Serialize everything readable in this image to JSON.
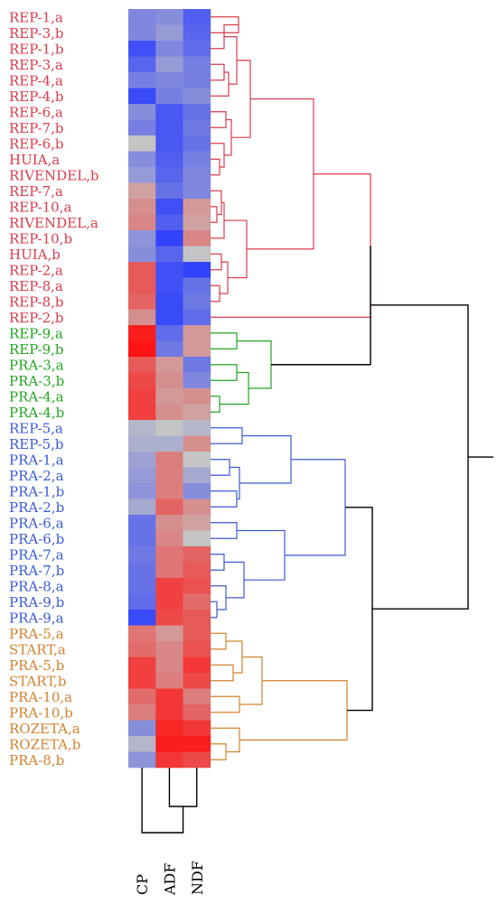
{
  "colors": {
    "red": "#d83c4c",
    "green": "#22a422",
    "blue": "#3a5ad6",
    "orange": "#d2822e",
    "root": "#000000",
    "heat_low": "#2a3cff",
    "heat_mid": "#c4c4c4",
    "heat_high": "#ff1414"
  },
  "columns": [
    "CP",
    "ADF",
    "NDF"
  ],
  "rows": [
    {
      "label": "REP-1,a",
      "group": "red",
      "heat": [
        -0.45,
        -0.4,
        -0.75
      ]
    },
    {
      "label": "REP-3,b",
      "group": "red",
      "heat": [
        -0.45,
        -0.3,
        -0.7
      ]
    },
    {
      "label": "REP-1,b",
      "group": "red",
      "heat": [
        -0.85,
        -0.45,
        -0.65
      ]
    },
    {
      "label": "REP-3,a",
      "group": "red",
      "heat": [
        -0.7,
        -0.3,
        -0.5
      ]
    },
    {
      "label": "REP-4,a",
      "group": "red",
      "heat": [
        -0.5,
        -0.45,
        -0.5
      ]
    },
    {
      "label": "REP-4,b",
      "group": "red",
      "heat": [
        -0.9,
        -0.5,
        -0.4
      ]
    },
    {
      "label": "REP-6,a",
      "group": "red",
      "heat": [
        -0.4,
        -0.8,
        -0.6
      ]
    },
    {
      "label": "REP-7,b",
      "group": "red",
      "heat": [
        -0.5,
        -0.8,
        -0.55
      ]
    },
    {
      "label": "REP-6,b",
      "group": "red",
      "heat": [
        0.0,
        -0.8,
        -0.6
      ]
    },
    {
      "label": "HUIA,a",
      "group": "red",
      "heat": [
        -0.4,
        -0.75,
        -0.5
      ]
    },
    {
      "label": "RIVENDEL,b",
      "group": "red",
      "heat": [
        -0.3,
        -0.7,
        -0.45
      ]
    },
    {
      "label": "REP-7,a",
      "group": "red",
      "heat": [
        0.2,
        -0.6,
        -0.45
      ]
    },
    {
      "label": "REP-10,a",
      "group": "red",
      "heat": [
        0.3,
        -0.85,
        0.25
      ]
    },
    {
      "label": "RIVENDEL,a",
      "group": "red",
      "heat": [
        0.35,
        -0.75,
        0.2
      ]
    },
    {
      "label": "REP-10,b",
      "group": "red",
      "heat": [
        -0.35,
        -0.95,
        0.35
      ]
    },
    {
      "label": "HUIA,b",
      "group": "red",
      "heat": [
        -0.4,
        -0.7,
        0.0
      ]
    },
    {
      "label": "REP-2,a",
      "group": "red",
      "heat": [
        0.6,
        -0.85,
        -0.95
      ]
    },
    {
      "label": "REP-8,a",
      "group": "red",
      "heat": [
        0.6,
        -0.85,
        -0.6
      ]
    },
    {
      "label": "REP-8,b",
      "group": "red",
      "heat": [
        0.55,
        -0.9,
        -0.55
      ]
    },
    {
      "label": "REP-2,b",
      "group": "red",
      "heat": [
        0.3,
        -0.9,
        -0.65
      ]
    },
    {
      "label": "REP-9,a",
      "group": "green",
      "heat": [
        0.95,
        -0.65,
        0.25
      ]
    },
    {
      "label": "REP-9,b",
      "group": "green",
      "heat": [
        1.0,
        -0.55,
        0.25
      ]
    },
    {
      "label": "PRA-3,a",
      "group": "green",
      "heat": [
        0.6,
        0.25,
        -0.55
      ]
    },
    {
      "label": "PRA-3,b",
      "group": "green",
      "heat": [
        0.7,
        0.3,
        -0.45
      ]
    },
    {
      "label": "PRA-4,a",
      "group": "green",
      "heat": [
        0.75,
        0.25,
        0.3
      ]
    },
    {
      "label": "PRA-4,b",
      "group": "green",
      "heat": [
        0.75,
        0.3,
        0.2
      ]
    },
    {
      "label": "REP-5,a",
      "group": "blue",
      "heat": [
        -0.1,
        0.0,
        -0.1
      ]
    },
    {
      "label": "REP-5,b",
      "group": "blue",
      "heat": [
        -0.15,
        -0.15,
        0.3
      ]
    },
    {
      "label": "PRA-1,a",
      "group": "blue",
      "heat": [
        -0.25,
        0.4,
        0.0
      ]
    },
    {
      "label": "PRA-2,a",
      "group": "blue",
      "heat": [
        -0.3,
        0.4,
        -0.2
      ]
    },
    {
      "label": "PRA-1,b",
      "group": "blue",
      "heat": [
        -0.35,
        0.4,
        -0.4
      ]
    },
    {
      "label": "PRA-2,b",
      "group": "blue",
      "heat": [
        -0.2,
        0.55,
        0.3
      ]
    },
    {
      "label": "PRA-6,a",
      "group": "blue",
      "heat": [
        -0.6,
        0.3,
        0.2
      ]
    },
    {
      "label": "PRA-6,b",
      "group": "blue",
      "heat": [
        -0.6,
        0.35,
        0.0
      ]
    },
    {
      "label": "PRA-7,a",
      "group": "blue",
      "heat": [
        -0.55,
        0.45,
        0.55
      ]
    },
    {
      "label": "PRA-7,b",
      "group": "blue",
      "heat": [
        -0.6,
        0.45,
        0.6
      ]
    },
    {
      "label": "PRA-8,a",
      "group": "blue",
      "heat": [
        -0.6,
        0.75,
        0.65
      ]
    },
    {
      "label": "PRA-9,b",
      "group": "blue",
      "heat": [
        -0.65,
        0.75,
        0.5
      ]
    },
    {
      "label": "PRA-9,a",
      "group": "blue",
      "heat": [
        -0.9,
        0.7,
        0.6
      ]
    },
    {
      "label": "PRA-5,a",
      "group": "orange",
      "heat": [
        0.45,
        0.25,
        0.6
      ]
    },
    {
      "label": "START,a",
      "group": "orange",
      "heat": [
        0.5,
        0.35,
        0.65
      ]
    },
    {
      "label": "PRA-5,b",
      "group": "orange",
      "heat": [
        0.75,
        0.35,
        0.8
      ]
    },
    {
      "label": "START,b",
      "group": "orange",
      "heat": [
        0.75,
        0.4,
        0.7
      ]
    },
    {
      "label": "PRA-10,a",
      "group": "orange",
      "heat": [
        0.5,
        0.8,
        0.4
      ]
    },
    {
      "label": "PRA-10,b",
      "group": "orange",
      "heat": [
        0.4,
        0.8,
        0.55
      ]
    },
    {
      "label": "ROZETA,a",
      "group": "orange",
      "heat": [
        -0.4,
        0.9,
        0.8
      ]
    },
    {
      "label": "ROZETA,b",
      "group": "orange",
      "heat": [
        -0.1,
        0.95,
        0.95
      ]
    },
    {
      "label": "PRA-8,b",
      "group": "orange",
      "heat": [
        -0.35,
        0.8,
        0.7
      ]
    }
  ]
}
